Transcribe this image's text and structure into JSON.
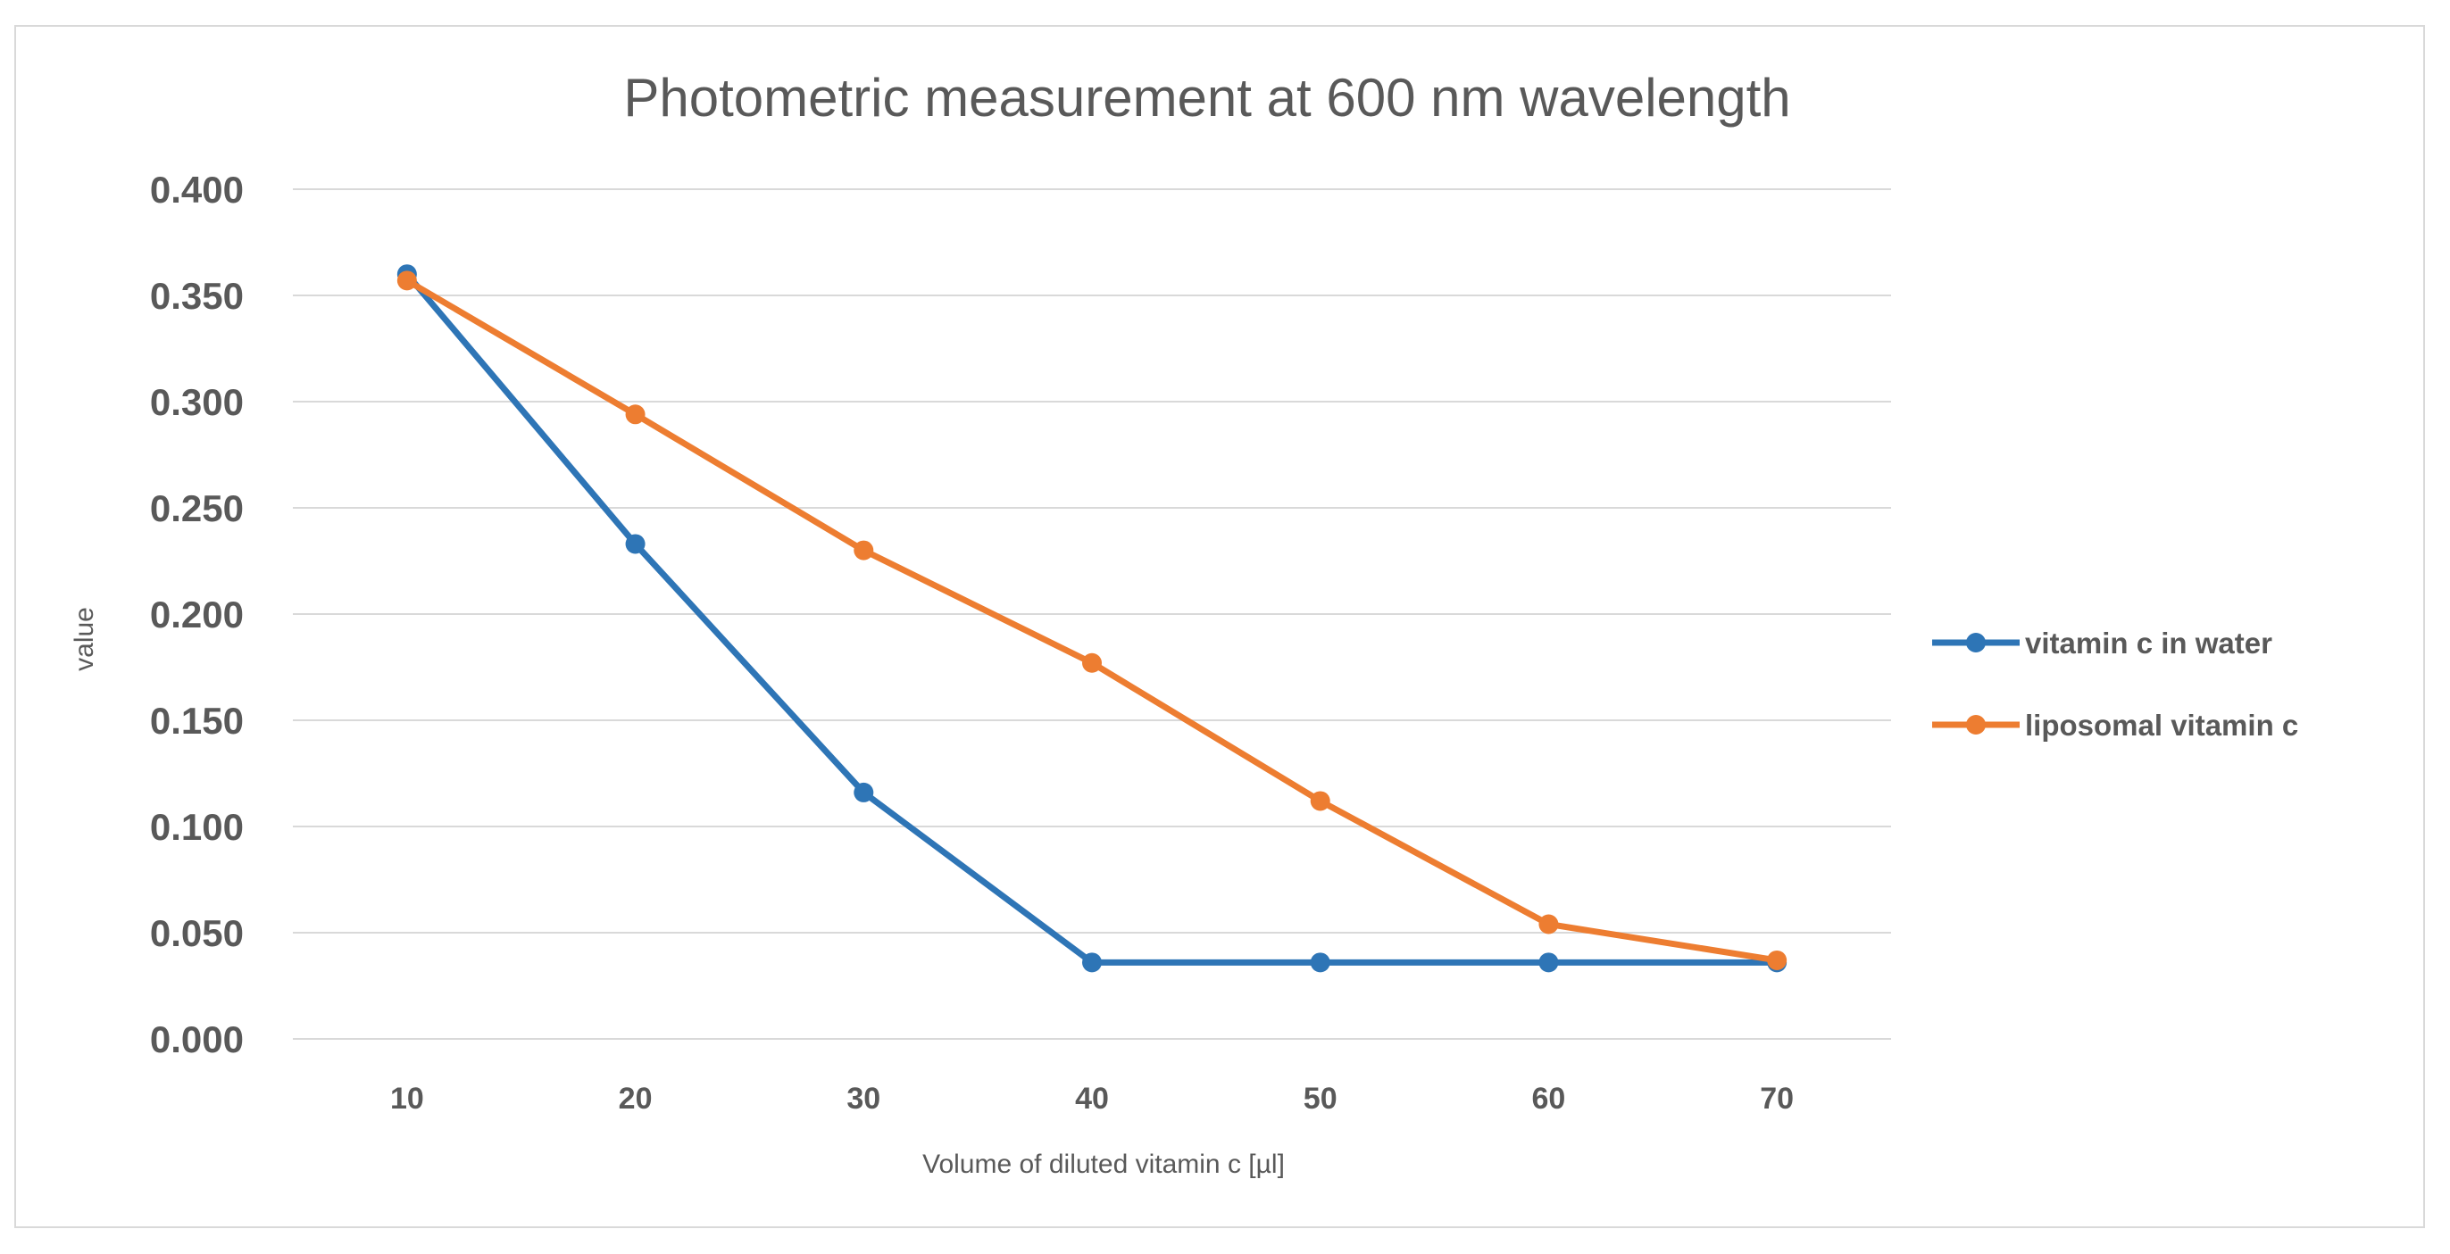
{
  "chart_data": {
    "type": "line",
    "title": "Photometric measurement at 600 nm wavelength",
    "xlabel": "Volume of diluted vitamin c [µl]",
    "ylabel": "value",
    "categories": [
      "10",
      "20",
      "30",
      "40",
      "50",
      "60",
      "70"
    ],
    "y_ticks": [
      "0.000",
      "0.050",
      "0.100",
      "0.150",
      "0.200",
      "0.250",
      "0.300",
      "0.350",
      "0.400"
    ],
    "ylim": [
      0,
      0.4
    ],
    "grid": true,
    "legend_position": "right",
    "series": [
      {
        "name": "vitamin c in water",
        "color": "#2e75b6",
        "values": [
          0.36,
          0.233,
          0.116,
          0.036,
          0.036,
          0.036,
          0.036
        ]
      },
      {
        "name": "liposomal vitamin c",
        "color": "#ed7d31",
        "values": [
          0.357,
          0.294,
          0.23,
          0.177,
          0.112,
          0.054,
          0.037
        ]
      }
    ]
  }
}
